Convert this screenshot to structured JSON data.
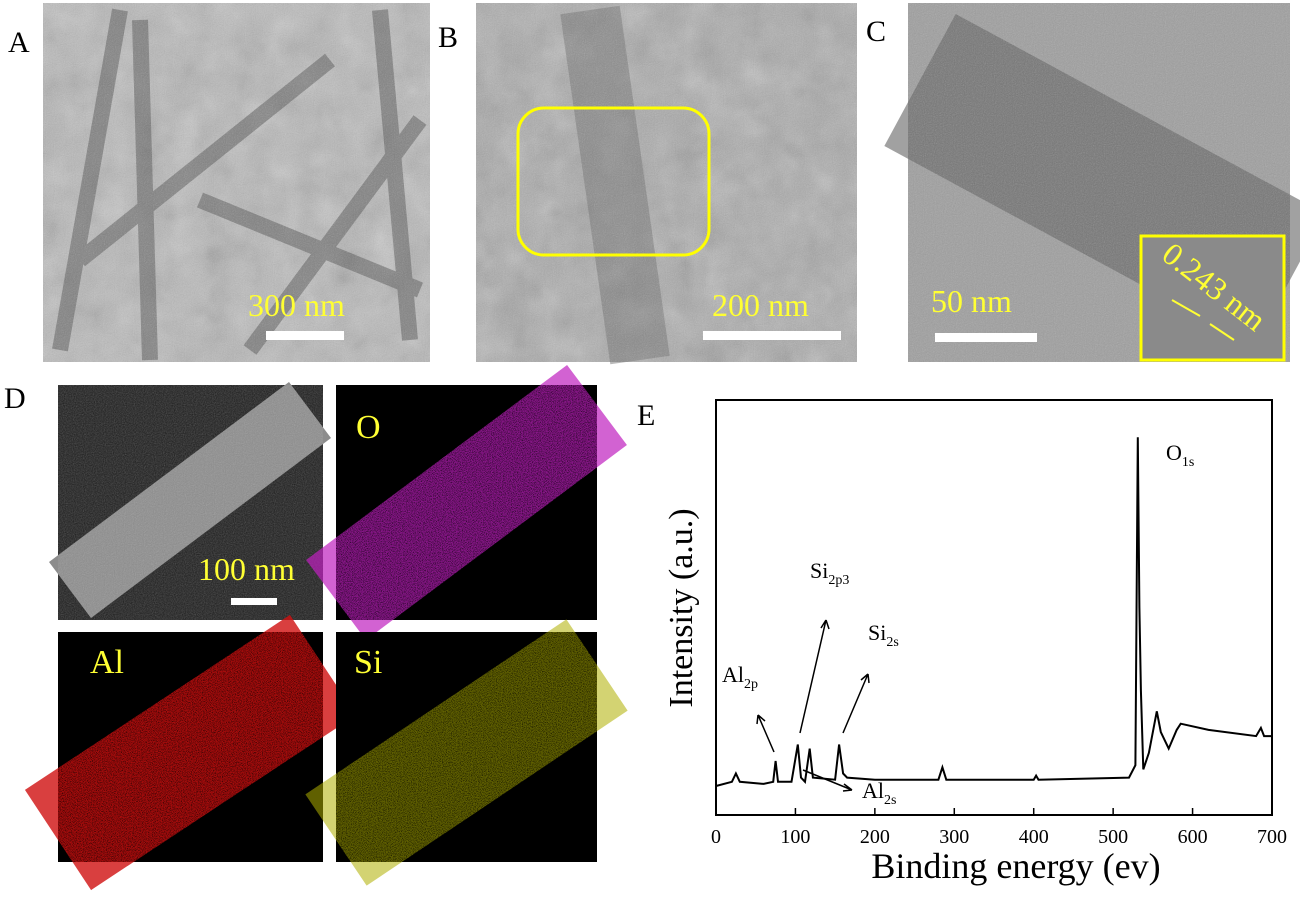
{
  "panels": [
    {
      "letter": "A",
      "scale_bar": "300 nm"
    },
    {
      "letter": "B",
      "scale_bar": "200 nm"
    },
    {
      "letter": "C",
      "scale_bar": "50 nm",
      "inset_label": "0.243 nm"
    },
    {
      "letter": "D",
      "scale_bar": "100 nm",
      "maps": [
        "O",
        "Al",
        "Si"
      ]
    },
    {
      "letter": "E"
    }
  ],
  "chart_data": {
    "type": "line",
    "x_label": "Binding energy (ev)",
    "y_label": "Intensity (a.u.)",
    "x": [
      0,
      20,
      25,
      30,
      60,
      72,
      75,
      78,
      95,
      103,
      107,
      112,
      118,
      122,
      150,
      155,
      160,
      165,
      200,
      280,
      285,
      290,
      400,
      403,
      406,
      520,
      528,
      531,
      533,
      535,
      538,
      545,
      555,
      560,
      570,
      580,
      585,
      620,
      680,
      686,
      690,
      700
    ],
    "values": [
      7,
      8,
      10,
      8,
      7.5,
      8,
      13,
      8,
      8,
      17,
      9,
      8,
      16,
      9,
      8.5,
      17,
      10,
      9,
      8.5,
      8.5,
      11.5,
      8.5,
      8.5,
      9.5,
      8.5,
      9,
      12,
      91,
      50,
      30,
      11,
      15,
      25,
      20,
      16,
      20.5,
      22,
      20.5,
      19,
      21,
      19,
      19
    ],
    "color": "#000000",
    "xlim": [
      0,
      700
    ],
    "ylim": [
      0,
      100
    ],
    "xticks": [
      0,
      100,
      200,
      300,
      400,
      500,
      600,
      700
    ],
    "annotations": [
      {
        "text": "Al",
        "sub": "2p"
      },
      {
        "text": "Si",
        "sub": "2p3"
      },
      {
        "text": "Si",
        "sub": "2s"
      },
      {
        "text": "O",
        "sub": "1s"
      },
      {
        "text": "Al",
        "sub": "2s"
      }
    ]
  }
}
